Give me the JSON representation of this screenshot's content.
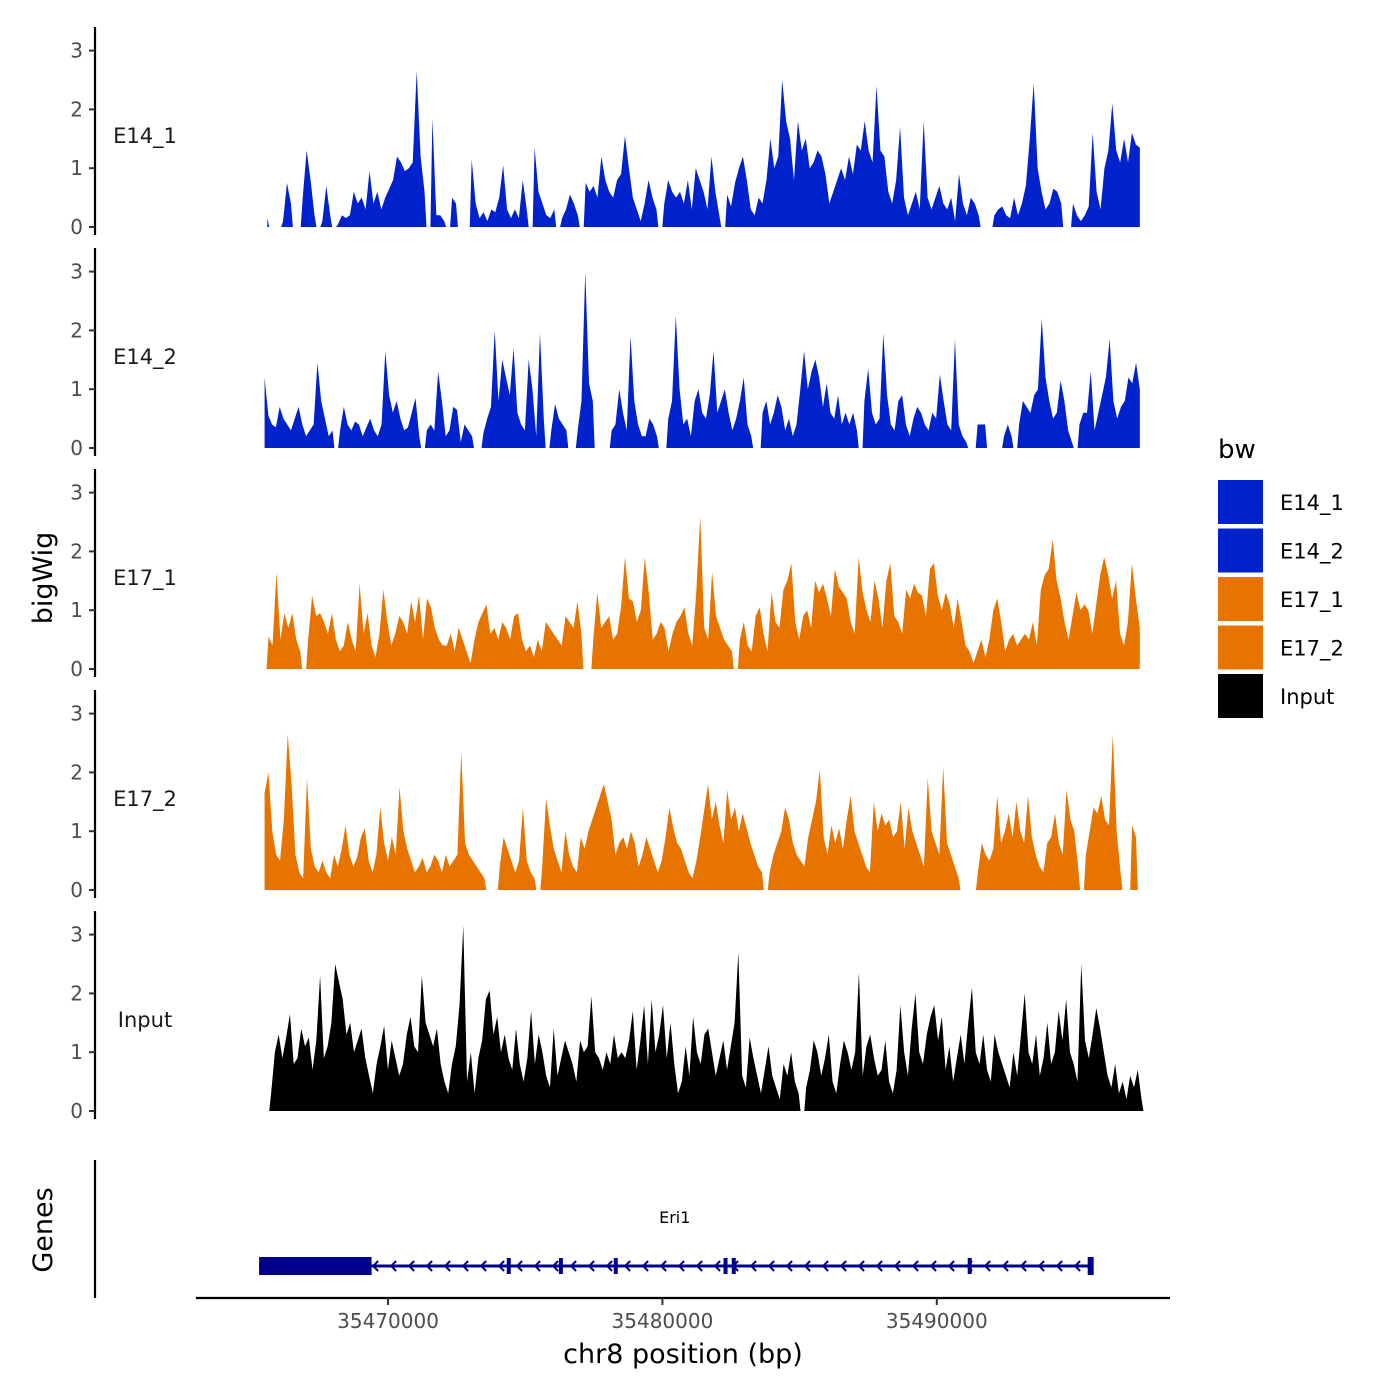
{
  "chart_data": {
    "type": "area",
    "ylabel": "bigWig",
    "xlabel": "chr8 position (bp)",
    "gene_track_label": "Genes",
    "xlim": [
      35463000,
      35498500
    ],
    "x_ticks": [
      35470000,
      35480000,
      35490000
    ],
    "x_tick_labels": [
      "35470000",
      "35480000",
      "35490000"
    ],
    "ylim": [
      0,
      3.3
    ],
    "y_ticks": [
      0,
      1,
      2,
      3
    ],
    "y_tick_labels": [
      "0",
      "1",
      "2",
      "3"
    ],
    "legend": {
      "title": "bw",
      "placement": "right",
      "entries": [
        {
          "label": "E14_1",
          "color": "#0022CC"
        },
        {
          "label": "E14_2",
          "color": "#0022CC"
        },
        {
          "label": "E17_1",
          "color": "#E87400"
        },
        {
          "label": "E17_2",
          "color": "#E87400"
        },
        {
          "label": "Input",
          "color": "#000000"
        }
      ]
    },
    "series": [
      {
        "name": "E14_1",
        "color": "#0022CC",
        "start": 35465600,
        "end": 35497400,
        "bin": 250,
        "values": [
          0.15,
          0,
          0,
          0,
          0.1,
          0.75,
          0.4,
          0,
          0,
          0.5,
          1.3,
          0.8,
          0.2,
          0,
          0.1,
          0.7,
          0.2,
          0,
          0.05,
          0.2,
          0.15,
          0.2,
          0.6,
          0.4,
          0.5,
          0.3,
          0.95,
          0.4,
          0.6,
          0.3,
          0.5,
          0.65,
          0.8,
          1.2,
          1.1,
          0.95,
          1.0,
          1.1,
          2.65,
          1.2,
          0.6,
          0,
          1.85,
          0.2,
          0.2,
          0.1,
          0,
          0.5,
          0.4,
          0,
          0,
          0,
          1.15,
          0.4,
          0.15,
          0.25,
          0.1,
          0.3,
          0.25,
          0.5,
          1.05,
          0.3,
          0.15,
          0.3,
          0.15,
          0.8,
          0.3,
          0,
          1.35,
          0.6,
          0.4,
          0.2,
          0.15,
          0.3,
          0,
          0.15,
          0.3,
          0.55,
          0.4,
          0.2,
          0,
          0.75,
          0.6,
          0.7,
          0.5,
          1.2,
          0.8,
          0.6,
          0.5,
          0.8,
          0.9,
          1.55,
          1.0,
          0.5,
          0.3,
          0.1,
          0.4,
          0.8,
          0.5,
          0.3,
          0,
          0.4,
          0.8,
          0.6,
          0.5,
          0.6,
          0.4,
          0.8,
          0.3,
          1.0,
          0.8,
          0.6,
          0.3,
          1.2,
          0.6,
          0.2,
          0,
          0.55,
          0.35,
          0.75,
          1.0,
          1.2,
          0.8,
          0.3,
          0.2,
          0.5,
          0.4,
          0.8,
          1.5,
          1.0,
          1.2,
          2.5,
          1.8,
          1.5,
          0.8,
          1.8,
          1.3,
          1.5,
          1.0,
          1.1,
          1.3,
          1.2,
          0.9,
          0.4,
          0.6,
          0.8,
          1.0,
          0.8,
          1.2,
          0.9,
          1.4,
          1.3,
          1.8,
          1.3,
          1.1,
          2.4,
          1.3,
          1.2,
          0.6,
          0.4,
          0.8,
          1.7,
          0.5,
          0.2,
          0.4,
          0.6,
          0.3,
          1.8,
          0.5,
          0.3,
          0.5,
          0.7,
          0.4,
          0.3,
          0.5,
          0.1,
          0.9,
          0.4,
          0.2,
          0.5,
          0.4,
          0.2,
          0,
          0,
          0,
          0.2,
          0.3,
          0.35,
          0.2,
          0.15,
          0.5,
          0.2,
          0.4,
          0.7,
          1.5,
          2.45,
          1.0,
          0.6,
          0.3,
          0.4,
          0.65,
          0.6,
          0.4,
          0,
          0,
          0.4,
          0.2,
          0.1,
          0.2,
          0.35,
          1.6,
          0.6,
          0.3,
          1.0,
          1.3,
          2.1,
          1.3,
          1.1,
          1.5,
          1.1,
          1.6,
          1.4,
          1.35
        ]
      },
      {
        "name": "E14_2",
        "color": "#0022CC",
        "start": 35465500,
        "end": 35497400,
        "bin": 250,
        "values": [
          1.2,
          0.55,
          0.4,
          0.35,
          0.7,
          0.5,
          0.4,
          0.3,
          0.5,
          0.7,
          0.4,
          0.2,
          0.3,
          0.4,
          1.45,
          0.8,
          0.5,
          0.2,
          0.3,
          0,
          0.3,
          0.7,
          0.4,
          0.3,
          0.45,
          0.4,
          0.2,
          0.35,
          0.5,
          0.3,
          0.2,
          0.4,
          1.65,
          0.9,
          0.6,
          0.8,
          0.5,
          0.3,
          0.35,
          0.6,
          0.85,
          0.2,
          0,
          0.3,
          0.4,
          0.3,
          1.3,
          0.8,
          0.2,
          0.3,
          0.7,
          0.65,
          0.1,
          0.4,
          0.3,
          0.2,
          0,
          0,
          0.25,
          0.5,
          0.7,
          2.0,
          0.8,
          1.5,
          1.2,
          0.9,
          1.7,
          0.6,
          0.4,
          0.3,
          1.5,
          1.0,
          0.2,
          1.95,
          0.5,
          0,
          0.3,
          0.75,
          0.5,
          0.4,
          0.3,
          0,
          0,
          0.3,
          0.8,
          3.0,
          1.1,
          0.8,
          0,
          0,
          0,
          0,
          0.3,
          0.4,
          1.0,
          0.6,
          0.3,
          1.9,
          0.8,
          0.4,
          0.2,
          0.2,
          0.5,
          0.4,
          0.2,
          0,
          0,
          0.5,
          0.8,
          2.25,
          1.0,
          0.4,
          0.5,
          0.2,
          0.8,
          1.0,
          0.6,
          0.5,
          0.9,
          1.65,
          0.6,
          0.8,
          1.0,
          0.6,
          0.3,
          0.5,
          0.8,
          1.2,
          0.4,
          0.2,
          0,
          0,
          0.6,
          0.8,
          0.4,
          0.6,
          0.9,
          0.7,
          0.3,
          0.5,
          0.2,
          0.4,
          1.0,
          1.65,
          1.0,
          1.3,
          1.5,
          1.2,
          0.7,
          1.1,
          0.6,
          0.5,
          0.9,
          0.4,
          0.6,
          0.4,
          0.6,
          0.3,
          0,
          0.8,
          1.35,
          0.6,
          0.4,
          0.5,
          1.95,
          0.9,
          0.4,
          0.3,
          0.8,
          0.9,
          0.4,
          0.2,
          0.5,
          0.7,
          0.6,
          0.4,
          0.3,
          0.6,
          0.5,
          1.25,
          0.8,
          0.4,
          0.3,
          1.85,
          0.4,
          0.2,
          0.1,
          0,
          0,
          0.4,
          0.4,
          0.4,
          0,
          0,
          0,
          0,
          0.2,
          0.4,
          0.2,
          0,
          0.4,
          0.8,
          0.7,
          0.6,
          0.9,
          1.0,
          2.2,
          1.2,
          0.8,
          0.5,
          0.6,
          1.15,
          0.8,
          0.3,
          0.1,
          0,
          0.4,
          0.6,
          0.6,
          1.3,
          0.3,
          0.6,
          0.9,
          1.2,
          1.85,
          0.8,
          0.5,
          0.7,
          0.8,
          1.2,
          1.1,
          1.45,
          1.0
        ]
      },
      {
        "name": "E17_1",
        "color": "#E87400",
        "start": 35465500,
        "end": 35497400,
        "bin": 250,
        "values": [
          0,
          0.55,
          0.4,
          1.65,
          0.5,
          0.95,
          0.7,
          0.95,
          0.5,
          0.3,
          0,
          0.5,
          1.25,
          0.9,
          0.95,
          0.8,
          0.6,
          0.95,
          0.5,
          0.3,
          0.4,
          0.8,
          0.5,
          0.3,
          1.45,
          0.6,
          0.95,
          0.4,
          0.2,
          0.6,
          1.35,
          0.8,
          0.4,
          0.6,
          0.9,
          0.8,
          0.6,
          1.15,
          0.8,
          1.25,
          0.5,
          1.2,
          1.05,
          0.7,
          0.5,
          0.4,
          0.4,
          0.6,
          0.3,
          0.7,
          0.5,
          0.3,
          0.1,
          0.5,
          0.8,
          0.95,
          1.1,
          0.6,
          0.7,
          0.5,
          0.8,
          0.7,
          0.5,
          0.9,
          0.95,
          0.5,
          0.3,
          0.4,
          0.2,
          0.5,
          0.3,
          0.8,
          0.7,
          0.6,
          0.5,
          0.4,
          0.9,
          0.8,
          0.7,
          1.15,
          0.6,
          0,
          0,
          0.5,
          1.3,
          0.7,
          0.8,
          0.9,
          0.5,
          0.6,
          1.05,
          1.9,
          1.2,
          1.15,
          0.8,
          1.0,
          1.9,
          1.3,
          0.5,
          0.6,
          0.8,
          0.7,
          0.3,
          0.6,
          0.8,
          0.9,
          1.05,
          0.6,
          0.4,
          1.3,
          2.6,
          0.7,
          0.5,
          1.65,
          0.9,
          0.7,
          0.5,
          0.4,
          0.3,
          0,
          0.5,
          0.8,
          0.4,
          0.3,
          0.9,
          1.05,
          0.6,
          0.3,
          1.3,
          0.8,
          0.7,
          1.35,
          1.5,
          1.8,
          0.8,
          0.5,
          0.9,
          1.0,
          0.7,
          1.5,
          1.3,
          1.45,
          1.2,
          0.9,
          1.7,
          1.4,
          1.3,
          1.2,
          0.8,
          0.6,
          1.9,
          1.3,
          1.0,
          0.8,
          1.5,
          1.2,
          0.7,
          1.5,
          1.8,
          0.9,
          0.8,
          0.6,
          1.35,
          1.2,
          1.45,
          1.3,
          1.25,
          0.9,
          1.7,
          1.8,
          1.25,
          1.0,
          1.3,
          1.1,
          0.7,
          1.2,
          0.8,
          0.4,
          0.3,
          0.1,
          0.3,
          0.5,
          0.2,
          0.5,
          1.0,
          1.2,
          0.8,
          0.3,
          0.5,
          0.6,
          0.4,
          0.5,
          0.6,
          0.5,
          0.8,
          0.4,
          1.35,
          1.6,
          1.7,
          2.2,
          1.5,
          1.2,
          0.8,
          0.5,
          0.9,
          1.3,
          1.0,
          1.1,
          1.0,
          0.6,
          1.1,
          1.6,
          1.9,
          1.6,
          1.2,
          1.5,
          0.6,
          0.4,
          0.8,
          1.8,
          1.2,
          0.7
        ]
      },
      {
        "name": "E17_2",
        "color": "#E87400",
        "start": 35465500,
        "end": 35497400,
        "bin": 250,
        "values": [
          1.65,
          2.0,
          1.0,
          0.6,
          0.5,
          1.2,
          2.65,
          1.8,
          0.6,
          0.3,
          0.2,
          1.9,
          0.7,
          0.4,
          0.3,
          0.5,
          0.3,
          0.2,
          0.6,
          0.4,
          0.7,
          1.1,
          0.6,
          0.4,
          0.55,
          0.9,
          1.05,
          0.5,
          0.3,
          0.6,
          1.4,
          0.8,
          0.5,
          0.9,
          0.6,
          1.75,
          1.0,
          0.7,
          0.5,
          0.3,
          0.4,
          0.55,
          0.3,
          0.4,
          0.6,
          0.5,
          0.3,
          0.6,
          0.4,
          0.5,
          0.6,
          2.35,
          0.8,
          0.6,
          0.5,
          0.4,
          0.3,
          0.2,
          0,
          0,
          0,
          0.4,
          0.9,
          0.7,
          0.5,
          0.3,
          0.5,
          1.4,
          0.5,
          0.3,
          0.2,
          0,
          0.4,
          1.55,
          1.1,
          0.7,
          0.5,
          0.3,
          1.0,
          0.6,
          0.4,
          0.3,
          0.9,
          0.7,
          1.0,
          1.2,
          1.4,
          1.6,
          1.8,
          1.5,
          1.2,
          0.6,
          0.8,
          0.9,
          0.7,
          1.0,
          0.8,
          0.4,
          0.6,
          0.9,
          0.7,
          0.5,
          0.3,
          0.5,
          0.9,
          1.4,
          1.05,
          0.8,
          0.7,
          0.5,
          0.3,
          0.2,
          0.5,
          0.9,
          1.35,
          1.8,
          1.2,
          1.5,
          1.1,
          0.8,
          1.7,
          1.2,
          1.4,
          1.0,
          1.3,
          1.05,
          0.8,
          0.6,
          0.4,
          0.3,
          0,
          0.3,
          0.6,
          0.8,
          1.0,
          1.4,
          1.2,
          0.8,
          0.6,
          0.5,
          0.4,
          0.9,
          1.2,
          1.5,
          2.05,
          0.9,
          0.6,
          1.1,
          0.8,
          1.05,
          0.7,
          1.2,
          1.6,
          1.0,
          0.8,
          0.6,
          0.4,
          0.3,
          1.5,
          1.0,
          1.3,
          1.1,
          1.2,
          0.9,
          1.0,
          1.5,
          0.7,
          1.4,
          1.0,
          0.8,
          0.6,
          0.4,
          1.9,
          1.0,
          0.8,
          0.6,
          2.1,
          0.8,
          0.6,
          0.4,
          0.2,
          0,
          0,
          0,
          0,
          0.3,
          0.8,
          0.6,
          0.5,
          0.7,
          1.6,
          0.8,
          1.0,
          1.3,
          0.9,
          1.5,
          1.0,
          0.8,
          1.6,
          0.9,
          0.6,
          0.4,
          0.3,
          0.8,
          0.9,
          1.3,
          0.8,
          0.6,
          1.7,
          1.2,
          1.0,
          0.4,
          0,
          0.6,
          1.0,
          1.4,
          1.3,
          1.6,
          1.2,
          1.1,
          2.65,
          1.0,
          0.3,
          0,
          0,
          1.1,
          0.9,
          0
        ]
      },
      {
        "name": "Input",
        "color": "#000000",
        "start": 35465600,
        "end": 35497600,
        "bin": 250,
        "values": [
          0,
          0.3,
          1.0,
          1.3,
          0.9,
          1.25,
          1.65,
          0.8,
          0.9,
          1.4,
          1.1,
          1.25,
          0.7,
          1.2,
          2.3,
          0.9,
          1.1,
          1.5,
          2.5,
          2.2,
          1.9,
          1.3,
          1.5,
          1.0,
          1.2,
          1.4,
          0.9,
          0.6,
          0.3,
          0.8,
          1.1,
          1.45,
          0.7,
          1.2,
          0.9,
          0.6,
          0.8,
          1.3,
          1.6,
          1.1,
          1.0,
          2.3,
          1.5,
          1.3,
          1.1,
          1.4,
          0.8,
          0.5,
          0.3,
          0.8,
          1.1,
          1.8,
          3.15,
          0.5,
          1.0,
          0.3,
          0.9,
          1.2,
          1.9,
          2.05,
          1.3,
          1.6,
          1.0,
          1.3,
          0.9,
          0.7,
          1.4,
          0.8,
          0.5,
          0.9,
          1.7,
          0.8,
          1.3,
          1.0,
          0.6,
          0.4,
          1.4,
          0.6,
          0.9,
          1.2,
          1.0,
          0.8,
          0.5,
          1.2,
          1.0,
          1.1,
          1.95,
          1.0,
          0.9,
          0.7,
          1.0,
          0.8,
          1.3,
          0.9,
          1.0,
          0.9,
          1.2,
          1.7,
          0.7,
          1.2,
          1.8,
          0.8,
          1.9,
          1.0,
          1.3,
          1.8,
          0.9,
          1.5,
          0.8,
          0.3,
          0.5,
          1.1,
          0.6,
          1.6,
          1.0,
          0.8,
          1.3,
          1.4,
          1.0,
          0.6,
          0.9,
          1.2,
          0.7,
          1.1,
          1.5,
          2.7,
          0.6,
          0.4,
          1.25,
          0.9,
          0.6,
          0.3,
          0.7,
          1.1,
          0.6,
          0.4,
          0.2,
          0.8,
          0.6,
          1.0,
          0.5,
          0.3,
          0,
          0.4,
          0.7,
          1.2,
          1.0,
          0.6,
          0.9,
          1.3,
          0.5,
          0.3,
          0.8,
          1.2,
          1.0,
          0.7,
          1.0,
          2.35,
          0.6,
          1.1,
          1.3,
          0.9,
          0.6,
          0.7,
          1.2,
          0.5,
          0.3,
          0.7,
          1.8,
          1.0,
          0.6,
          1.4,
          2.0,
          1.0,
          0.8,
          1.3,
          1.6,
          1.8,
          1.2,
          1.6,
          0.7,
          1.1,
          0.5,
          0.9,
          1.3,
          0.8,
          1.5,
          2.1,
          1.0,
          0.8,
          1.3,
          0.7,
          0.5,
          1.3,
          1.0,
          0.8,
          0.6,
          0.4,
          1.0,
          0.6,
          1.3,
          2.0,
          1.0,
          0.8,
          1.3,
          0.6,
          0.9,
          1.5,
          0.8,
          1.0,
          1.7,
          1.2,
          1.9,
          1.0,
          0.8,
          0.5,
          2.5,
          1.2,
          0.9,
          1.3,
          1.75,
          1.4,
          1.0,
          0.6,
          0.4,
          0.8,
          0.3,
          0.5,
          0.2,
          0.6,
          0.4,
          0.7,
          0.2,
          0
        ]
      }
    ],
    "genes": [
      {
        "name": "Eri1",
        "strand": "-",
        "start": 35465300,
        "end": 35495600,
        "color": "#00008B",
        "thick": [
          [
            35465300,
            35469400
          ],
          [
            35495500,
            35495600
          ]
        ],
        "exons": [
          35474400,
          35476300,
          35478300,
          35482300,
          35482600,
          35491200
        ]
      }
    ]
  }
}
